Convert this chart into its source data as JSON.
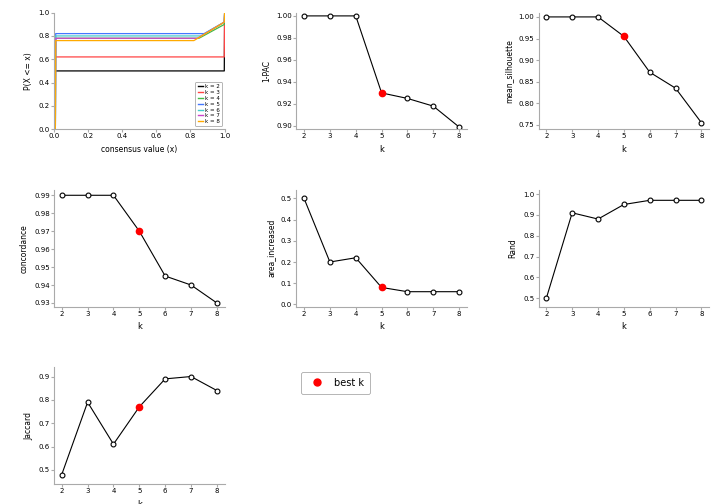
{
  "k_values": [
    2,
    3,
    4,
    5,
    6,
    7,
    8
  ],
  "pac_1minus": [
    1.0,
    1.0,
    1.0,
    0.93,
    0.925,
    0.918,
    0.899
  ],
  "mean_silhouette": [
    1.0,
    1.0,
    1.0,
    0.955,
    0.872,
    0.835,
    0.755
  ],
  "concordance": [
    0.99,
    0.99,
    0.99,
    0.97,
    0.945,
    0.94,
    0.93
  ],
  "area_increased": [
    0.5,
    0.2,
    0.22,
    0.08,
    0.06,
    0.06,
    0.06
  ],
  "rand": [
    0.5,
    0.91,
    0.88,
    0.95,
    0.97,
    0.97,
    0.97
  ],
  "jaccard": [
    0.48,
    0.79,
    0.61,
    0.77,
    0.89,
    0.9,
    0.84
  ],
  "best_k": 5,
  "ecdf_colors": [
    "#000000",
    "#FF4444",
    "#44BB44",
    "#4477FF",
    "#44CCCC",
    "#CC44CC",
    "#FFAA00"
  ],
  "ecdf_labels": [
    "k = 2",
    "k = 3",
    "k = 4",
    "k = 5",
    "k = 6",
    "k = 7",
    "k = 8"
  ],
  "bg_color": "#FFFFFF"
}
